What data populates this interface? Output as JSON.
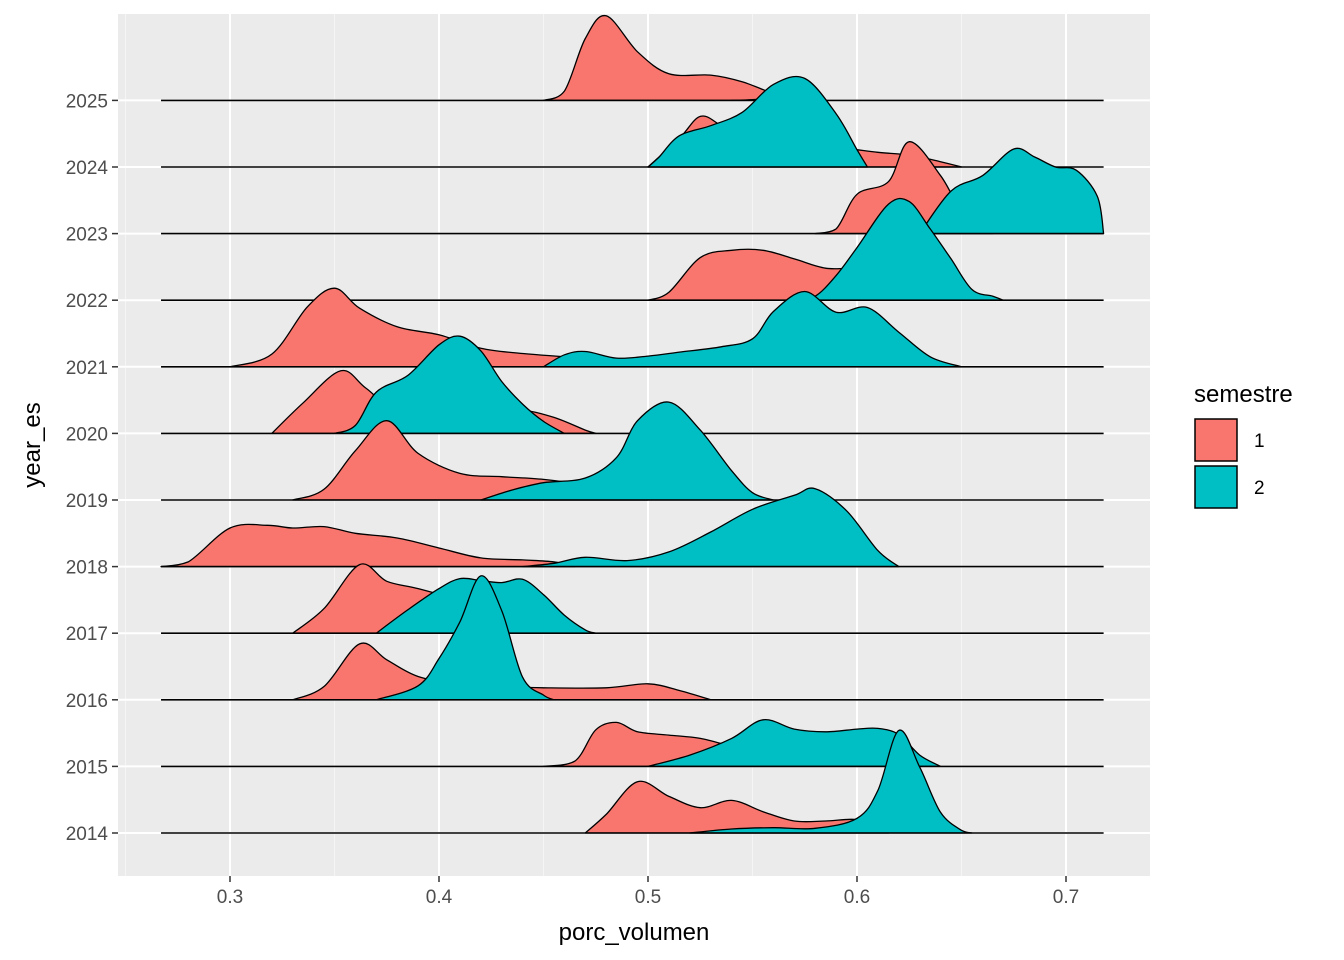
{
  "chart_data": {
    "type": "ridgeline",
    "xlabel": "porc_volumen",
    "ylabel": "year_es",
    "xlim": [
      0.25,
      0.74
    ],
    "x_ticks": [
      "0.3",
      "0.4",
      "0.5",
      "0.6",
      "0.7"
    ],
    "x_tick_values": [
      0.3,
      0.4,
      0.5,
      0.6,
      0.7
    ],
    "categories": [
      "2014",
      "2015",
      "2016",
      "2017",
      "2018",
      "2019",
      "2020",
      "2021",
      "2022",
      "2023",
      "2024",
      "2025"
    ],
    "baseline_range": [
      0.267,
      0.718
    ],
    "grid": true,
    "legend": {
      "title": "semestre",
      "position": "right",
      "entries": [
        {
          "label": "1",
          "color": "#F8766D"
        },
        {
          "label": "2",
          "color": "#00BFC4"
        }
      ]
    },
    "series": [
      {
        "name": "1",
        "color": "#F8766D",
        "ridges": {
          "2014": [
            [
              0.47,
              0
            ],
            [
              0.48,
              0.28
            ],
            [
              0.495,
              0.77
            ],
            [
              0.51,
              0.55
            ],
            [
              0.525,
              0.38
            ],
            [
              0.54,
              0.49
            ],
            [
              0.555,
              0.32
            ],
            [
              0.57,
              0.18
            ],
            [
              0.585,
              0.18
            ],
            [
              0.6,
              0.2
            ],
            [
              0.61,
              0.05
            ],
            [
              0.615,
              0
            ]
          ],
          "2015": [
            [
              0.45,
              0
            ],
            [
              0.465,
              0.08
            ],
            [
              0.475,
              0.55
            ],
            [
              0.485,
              0.66
            ],
            [
              0.495,
              0.52
            ],
            [
              0.51,
              0.47
            ],
            [
              0.525,
              0.42
            ],
            [
              0.54,
              0.3
            ],
            [
              0.555,
              0.18
            ],
            [
              0.565,
              0.05
            ],
            [
              0.57,
              0
            ]
          ],
          "2016": [
            [
              0.33,
              0
            ],
            [
              0.345,
              0.2
            ],
            [
              0.362,
              0.84
            ],
            [
              0.375,
              0.6
            ],
            [
              0.39,
              0.35
            ],
            [
              0.41,
              0.23
            ],
            [
              0.43,
              0.2
            ],
            [
              0.45,
              0.18
            ],
            [
              0.48,
              0.18
            ],
            [
              0.5,
              0.24
            ],
            [
              0.515,
              0.14
            ],
            [
              0.53,
              0
            ]
          ],
          "2017": [
            [
              0.33,
              0
            ],
            [
              0.345,
              0.37
            ],
            [
              0.362,
              1.03
            ],
            [
              0.375,
              0.78
            ],
            [
              0.39,
              0.67
            ],
            [
              0.41,
              0.49
            ],
            [
              0.43,
              0.25
            ],
            [
              0.44,
              0.12
            ],
            [
              0.45,
              0
            ]
          ],
          "2018": [
            [
              0.267,
              0
            ],
            [
              0.28,
              0.07
            ],
            [
              0.3,
              0.58
            ],
            [
              0.318,
              0.62
            ],
            [
              0.33,
              0.58
            ],
            [
              0.345,
              0.6
            ],
            [
              0.36,
              0.5
            ],
            [
              0.38,
              0.43
            ],
            [
              0.4,
              0.28
            ],
            [
              0.42,
              0.13
            ],
            [
              0.44,
              0.1
            ],
            [
              0.455,
              0.07
            ],
            [
              0.465,
              0
            ]
          ],
          "2019": [
            [
              0.33,
              0
            ],
            [
              0.345,
              0.16
            ],
            [
              0.36,
              0.74
            ],
            [
              0.375,
              1.19
            ],
            [
              0.39,
              0.7
            ],
            [
              0.41,
              0.4
            ],
            [
              0.43,
              0.35
            ],
            [
              0.45,
              0.31
            ],
            [
              0.47,
              0.22
            ],
            [
              0.485,
              0.12
            ],
            [
              0.5,
              0
            ]
          ],
          "2020": [
            [
              0.32,
              0
            ],
            [
              0.335,
              0.46
            ],
            [
              0.353,
              0.94
            ],
            [
              0.365,
              0.68
            ],
            [
              0.38,
              0.35
            ],
            [
              0.41,
              0.24
            ],
            [
              0.43,
              0.3
            ],
            [
              0.44,
              0.35
            ],
            [
              0.455,
              0.24
            ],
            [
              0.47,
              0.05
            ],
            [
              0.475,
              0
            ]
          ],
          "2021": [
            [
              0.3,
              0
            ],
            [
              0.32,
              0.19
            ],
            [
              0.337,
              0.9
            ],
            [
              0.35,
              1.18
            ],
            [
              0.362,
              0.88
            ],
            [
              0.38,
              0.6
            ],
            [
              0.4,
              0.48
            ],
            [
              0.42,
              0.28
            ],
            [
              0.44,
              0.2
            ],
            [
              0.47,
              0.13
            ],
            [
              0.49,
              0.1
            ],
            [
              0.51,
              0.04
            ],
            [
              0.52,
              0
            ]
          ],
          "2022": [
            [
              0.5,
              0
            ],
            [
              0.51,
              0.12
            ],
            [
              0.525,
              0.64
            ],
            [
              0.54,
              0.75
            ],
            [
              0.555,
              0.75
            ],
            [
              0.57,
              0.62
            ],
            [
              0.585,
              0.48
            ],
            [
              0.6,
              0.46
            ],
            [
              0.615,
              0.25
            ],
            [
              0.63,
              0.1
            ],
            [
              0.645,
              0
            ]
          ],
          "2023": [
            [
              0.58,
              0
            ],
            [
              0.59,
              0.07
            ],
            [
              0.6,
              0.59
            ],
            [
              0.615,
              0.78
            ],
            [
              0.625,
              1.38
            ],
            [
              0.64,
              0.87
            ],
            [
              0.65,
              0.33
            ],
            [
              0.66,
              0.06
            ],
            [
              0.665,
              0
            ]
          ],
          "2024": [
            [
              0.5,
              0
            ],
            [
              0.515,
              0.43
            ],
            [
              0.525,
              0.76
            ],
            [
              0.535,
              0.62
            ],
            [
              0.55,
              0.3
            ],
            [
              0.57,
              0.28
            ],
            [
              0.59,
              0.29
            ],
            [
              0.61,
              0.22
            ],
            [
              0.625,
              0.18
            ],
            [
              0.64,
              0.08
            ],
            [
              0.65,
              0
            ]
          ],
          "2025": [
            [
              0.45,
              0
            ],
            [
              0.46,
              0.14
            ],
            [
              0.47,
              0.93
            ],
            [
              0.48,
              1.27
            ],
            [
              0.495,
              0.73
            ],
            [
              0.51,
              0.4
            ],
            [
              0.53,
              0.38
            ],
            [
              0.545,
              0.28
            ],
            [
              0.56,
              0.1
            ],
            [
              0.57,
              0
            ]
          ]
        }
      },
      {
        "name": "2",
        "color": "#00BFC4",
        "ridges": {
          "2014": [
            [
              0.52,
              0
            ],
            [
              0.54,
              0.06
            ],
            [
              0.56,
              0.08
            ],
            [
              0.58,
              0.07
            ],
            [
              0.6,
              0.22
            ],
            [
              0.61,
              0.64
            ],
            [
              0.62,
              1.54
            ],
            [
              0.63,
              0.99
            ],
            [
              0.64,
              0.31
            ],
            [
              0.65,
              0.04
            ],
            [
              0.655,
              0
            ]
          ],
          "2015": [
            [
              0.5,
              0
            ],
            [
              0.52,
              0.17
            ],
            [
              0.54,
              0.42
            ],
            [
              0.555,
              0.7
            ],
            [
              0.57,
              0.56
            ],
            [
              0.585,
              0.52
            ],
            [
              0.6,
              0.56
            ],
            [
              0.61,
              0.57
            ],
            [
              0.62,
              0.48
            ],
            [
              0.63,
              0.17
            ],
            [
              0.64,
              0
            ]
          ],
          "2016": [
            [
              0.37,
              0
            ],
            [
              0.39,
              0.21
            ],
            [
              0.4,
              0.62
            ],
            [
              0.41,
              1.17
            ],
            [
              0.42,
              1.86
            ],
            [
              0.43,
              1.34
            ],
            [
              0.44,
              0.34
            ],
            [
              0.45,
              0.07
            ],
            [
              0.455,
              0
            ]
          ],
          "2017": [
            [
              0.37,
              0
            ],
            [
              0.385,
              0.35
            ],
            [
              0.4,
              0.67
            ],
            [
              0.41,
              0.82
            ],
            [
              0.42,
              0.79
            ],
            [
              0.43,
              0.76
            ],
            [
              0.44,
              0.81
            ],
            [
              0.45,
              0.58
            ],
            [
              0.46,
              0.27
            ],
            [
              0.47,
              0.05
            ],
            [
              0.475,
              0
            ]
          ],
          "2018": [
            [
              0.44,
              0
            ],
            [
              0.455,
              0.05
            ],
            [
              0.47,
              0.14
            ],
            [
              0.49,
              0.09
            ],
            [
              0.51,
              0.22
            ],
            [
              0.53,
              0.52
            ],
            [
              0.55,
              0.86
            ],
            [
              0.57,
              1.07
            ],
            [
              0.58,
              1.17
            ],
            [
              0.595,
              0.84
            ],
            [
              0.61,
              0.24
            ],
            [
              0.62,
              0
            ]
          ],
          "2019": [
            [
              0.42,
              0
            ],
            [
              0.435,
              0.15
            ],
            [
              0.45,
              0.26
            ],
            [
              0.47,
              0.33
            ],
            [
              0.485,
              0.64
            ],
            [
              0.495,
              1.19
            ],
            [
              0.51,
              1.47
            ],
            [
              0.525,
              1.05
            ],
            [
              0.54,
              0.44
            ],
            [
              0.55,
              0.11
            ],
            [
              0.56,
              0
            ]
          ],
          "2020": [
            [
              0.35,
              0
            ],
            [
              0.36,
              0.12
            ],
            [
              0.37,
              0.62
            ],
            [
              0.385,
              0.87
            ],
            [
              0.4,
              1.33
            ],
            [
              0.41,
              1.46
            ],
            [
              0.42,
              1.24
            ],
            [
              0.43,
              0.78
            ],
            [
              0.44,
              0.44
            ],
            [
              0.45,
              0.18
            ],
            [
              0.46,
              0
            ]
          ],
          "2021": [
            [
              0.45,
              0
            ],
            [
              0.46,
              0.18
            ],
            [
              0.47,
              0.23
            ],
            [
              0.485,
              0.13
            ],
            [
              0.5,
              0.16
            ],
            [
              0.515,
              0.22
            ],
            [
              0.535,
              0.3
            ],
            [
              0.55,
              0.42
            ],
            [
              0.56,
              0.83
            ],
            [
              0.575,
              1.13
            ],
            [
              0.59,
              0.82
            ],
            [
              0.605,
              0.89
            ],
            [
              0.62,
              0.52
            ],
            [
              0.635,
              0.15
            ],
            [
              0.65,
              0
            ]
          ],
          "2022": [
            [
              0.57,
              0
            ],
            [
              0.58,
              0.06
            ],
            [
              0.59,
              0.37
            ],
            [
              0.6,
              0.79
            ],
            [
              0.615,
              1.44
            ],
            [
              0.625,
              1.48
            ],
            [
              0.635,
              1.07
            ],
            [
              0.645,
              0.62
            ],
            [
              0.655,
              0.16
            ],
            [
              0.665,
              0.06
            ],
            [
              0.67,
              0
            ]
          ],
          "2023": [
            [
              0.63,
              0
            ],
            [
              0.645,
              0.64
            ],
            [
              0.66,
              0.87
            ],
            [
              0.675,
              1.27
            ],
            [
              0.685,
              1.15
            ],
            [
              0.695,
              1.0
            ],
            [
              0.705,
              0.95
            ],
            [
              0.715,
              0.56
            ],
            [
              0.718,
              0
            ]
          ],
          "2024": [
            [
              0.5,
              0
            ],
            [
              0.505,
              0.14
            ],
            [
              0.515,
              0.47
            ],
            [
              0.53,
              0.62
            ],
            [
              0.545,
              0.82
            ],
            [
              0.56,
              1.24
            ],
            [
              0.575,
              1.33
            ],
            [
              0.59,
              0.8
            ],
            [
              0.6,
              0.26
            ],
            [
              0.605,
              0
            ]
          ],
          "2025": [
            [
              0.54,
              0
            ],
            [
              0.55,
              0.01
            ],
            [
              0.56,
              0.03
            ],
            [
              0.57,
              0.05
            ],
            [
              0.575,
              0
            ]
          ]
        }
      }
    ]
  }
}
